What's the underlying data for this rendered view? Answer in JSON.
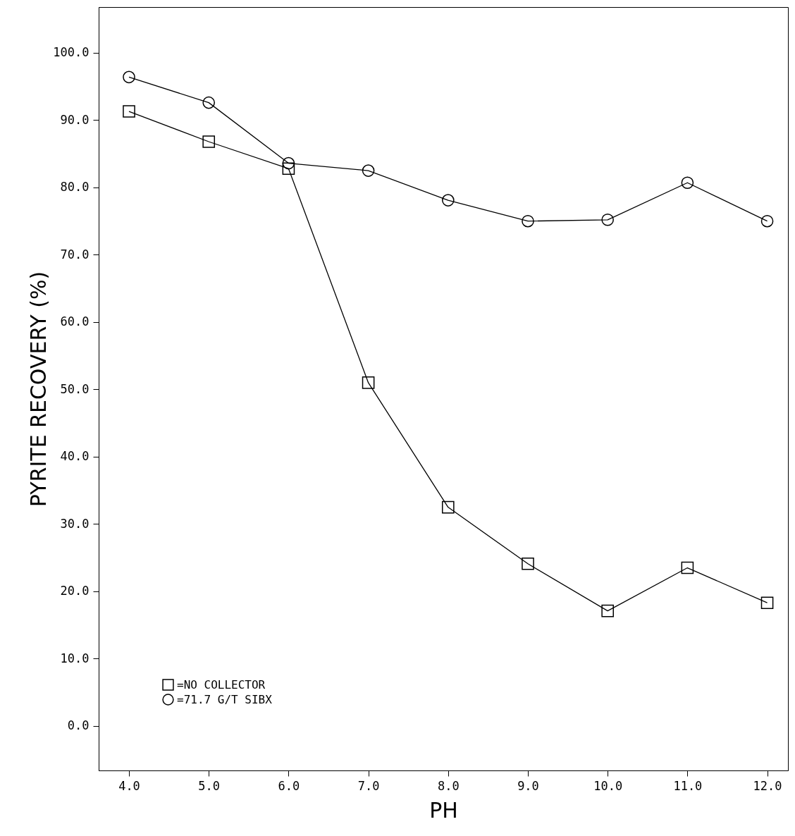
{
  "chart_data": {
    "type": "line",
    "xlabel": "PH",
    "ylabel": "PYRITE RECOVERY (%)",
    "x": [
      4,
      5,
      6,
      7,
      8,
      9,
      10,
      11,
      12
    ],
    "series": [
      {
        "name": "=NO COLLECTOR",
        "color": "#000000",
        "marker": "square",
        "values": [
          91.3,
          86.8,
          82.8,
          51.0,
          32.5,
          24.1,
          17.1,
          23.5,
          18.3
        ]
      },
      {
        "name": "=71.7 G/T SIBX",
        "color": "#000000",
        "marker": "circle",
        "values": [
          96.4,
          92.6,
          83.6,
          82.5,
          78.1,
          75.0,
          75.2,
          80.7,
          75.0
        ]
      }
    ],
    "xlim": [
      3.62,
      12.26
    ],
    "ylim": [
      -6.6,
      106.8
    ],
    "xticks": [
      {
        "value": 4,
        "label": "4.0"
      },
      {
        "value": 5,
        "label": "5.0"
      },
      {
        "value": 6,
        "label": "6.0"
      },
      {
        "value": 7,
        "label": "7.0"
      },
      {
        "value": 8,
        "label": "8.0"
      },
      {
        "value": 9,
        "label": "9.0"
      },
      {
        "value": 10,
        "label": "10.0"
      },
      {
        "value": 11,
        "label": "11.0"
      },
      {
        "value": 12,
        "label": "12.0"
      }
    ],
    "yticks": [
      {
        "value": 0,
        "label": "0.0"
      },
      {
        "value": 10,
        "label": "10.0"
      },
      {
        "value": 20,
        "label": "20.0"
      },
      {
        "value": 30,
        "label": "30.0"
      },
      {
        "value": 40,
        "label": "40.0"
      },
      {
        "value": 50,
        "label": "50.0"
      },
      {
        "value": 60,
        "label": "60.0"
      },
      {
        "value": 70,
        "label": "70.0"
      },
      {
        "value": 80,
        "label": "80.0"
      },
      {
        "value": 90,
        "label": "90.0"
      },
      {
        "value": 100,
        "label": "100.0"
      }
    ],
    "grid": false,
    "legend": "bottom left",
    "line_style": "solid"
  }
}
